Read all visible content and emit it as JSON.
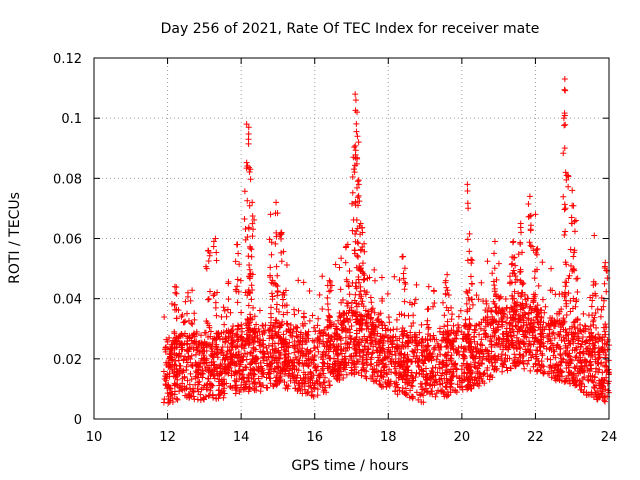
{
  "chart_data": {
    "type": "scatter",
    "title": "Day 256 of 2021, Rate Of TEC Index for receiver mate",
    "xlabel": "GPS time / hours",
    "ylabel": "ROTI / TECUs",
    "xlim": [
      10,
      24
    ],
    "ylim": [
      0,
      0.12
    ],
    "x_ticks": [
      "10",
      "12",
      "14",
      "16",
      "18",
      "20",
      "22",
      "24"
    ],
    "x_tick_values": [
      10,
      12,
      14,
      16,
      18,
      20,
      22,
      24
    ],
    "y_ticks": [
      "0",
      "0.02",
      "0.04",
      "0.06",
      "0.08",
      "0.1",
      "0.12"
    ],
    "y_tick_values": [
      0,
      0.02,
      0.04,
      0.06,
      0.08,
      0.1,
      0.12
    ],
    "grid": true,
    "marker": "+",
    "color": "#ff0000",
    "series": [
      {
        "name": "ROTI",
        "x_range": [
          11.9,
          24.0
        ],
        "baseline_profile": [
          [
            12.0,
            0.016
          ],
          [
            12.5,
            0.018
          ],
          [
            13.0,
            0.017
          ],
          [
            13.5,
            0.018
          ],
          [
            14.0,
            0.02
          ],
          [
            14.5,
            0.02
          ],
          [
            15.0,
            0.022
          ],
          [
            15.5,
            0.02
          ],
          [
            16.0,
            0.016
          ],
          [
            16.5,
            0.022
          ],
          [
            17.0,
            0.026
          ],
          [
            17.5,
            0.024
          ],
          [
            18.0,
            0.02
          ],
          [
            18.5,
            0.018
          ],
          [
            19.0,
            0.016
          ],
          [
            19.5,
            0.018
          ],
          [
            20.0,
            0.02
          ],
          [
            20.5,
            0.022
          ],
          [
            21.0,
            0.026
          ],
          [
            21.5,
            0.028
          ],
          [
            22.0,
            0.026
          ],
          [
            22.5,
            0.024
          ],
          [
            23.0,
            0.022
          ],
          [
            23.5,
            0.018
          ],
          [
            24.0,
            0.016
          ]
        ],
        "peaks": [
          [
            12.2,
            0.044
          ],
          [
            13.1,
            0.056
          ],
          [
            13.3,
            0.06
          ],
          [
            13.9,
            0.058
          ],
          [
            14.15,
            0.098
          ],
          [
            14.2,
            0.093
          ],
          [
            14.25,
            0.083
          ],
          [
            14.3,
            0.072
          ],
          [
            14.8,
            0.068
          ],
          [
            14.95,
            0.072
          ],
          [
            15.1,
            0.062
          ],
          [
            16.4,
            0.046
          ],
          [
            16.9,
            0.058
          ],
          [
            17.05,
            0.087
          ],
          [
            17.1,
            0.108
          ],
          [
            17.12,
            0.106
          ],
          [
            17.15,
            0.102
          ],
          [
            17.2,
            0.078
          ],
          [
            17.25,
            0.065
          ],
          [
            17.3,
            0.062
          ],
          [
            18.4,
            0.054
          ],
          [
            19.1,
            0.044
          ],
          [
            19.6,
            0.048
          ],
          [
            20.15,
            0.078
          ],
          [
            20.25,
            0.053
          ],
          [
            20.9,
            0.059
          ],
          [
            21.4,
            0.059
          ],
          [
            21.6,
            0.065
          ],
          [
            21.85,
            0.074
          ],
          [
            22.0,
            0.068
          ],
          [
            22.8,
            0.113
          ],
          [
            22.85,
            0.081
          ],
          [
            23.0,
            0.076
          ],
          [
            23.1,
            0.066
          ],
          [
            23.6,
            0.061
          ],
          [
            23.9,
            0.052
          ]
        ]
      }
    ]
  }
}
